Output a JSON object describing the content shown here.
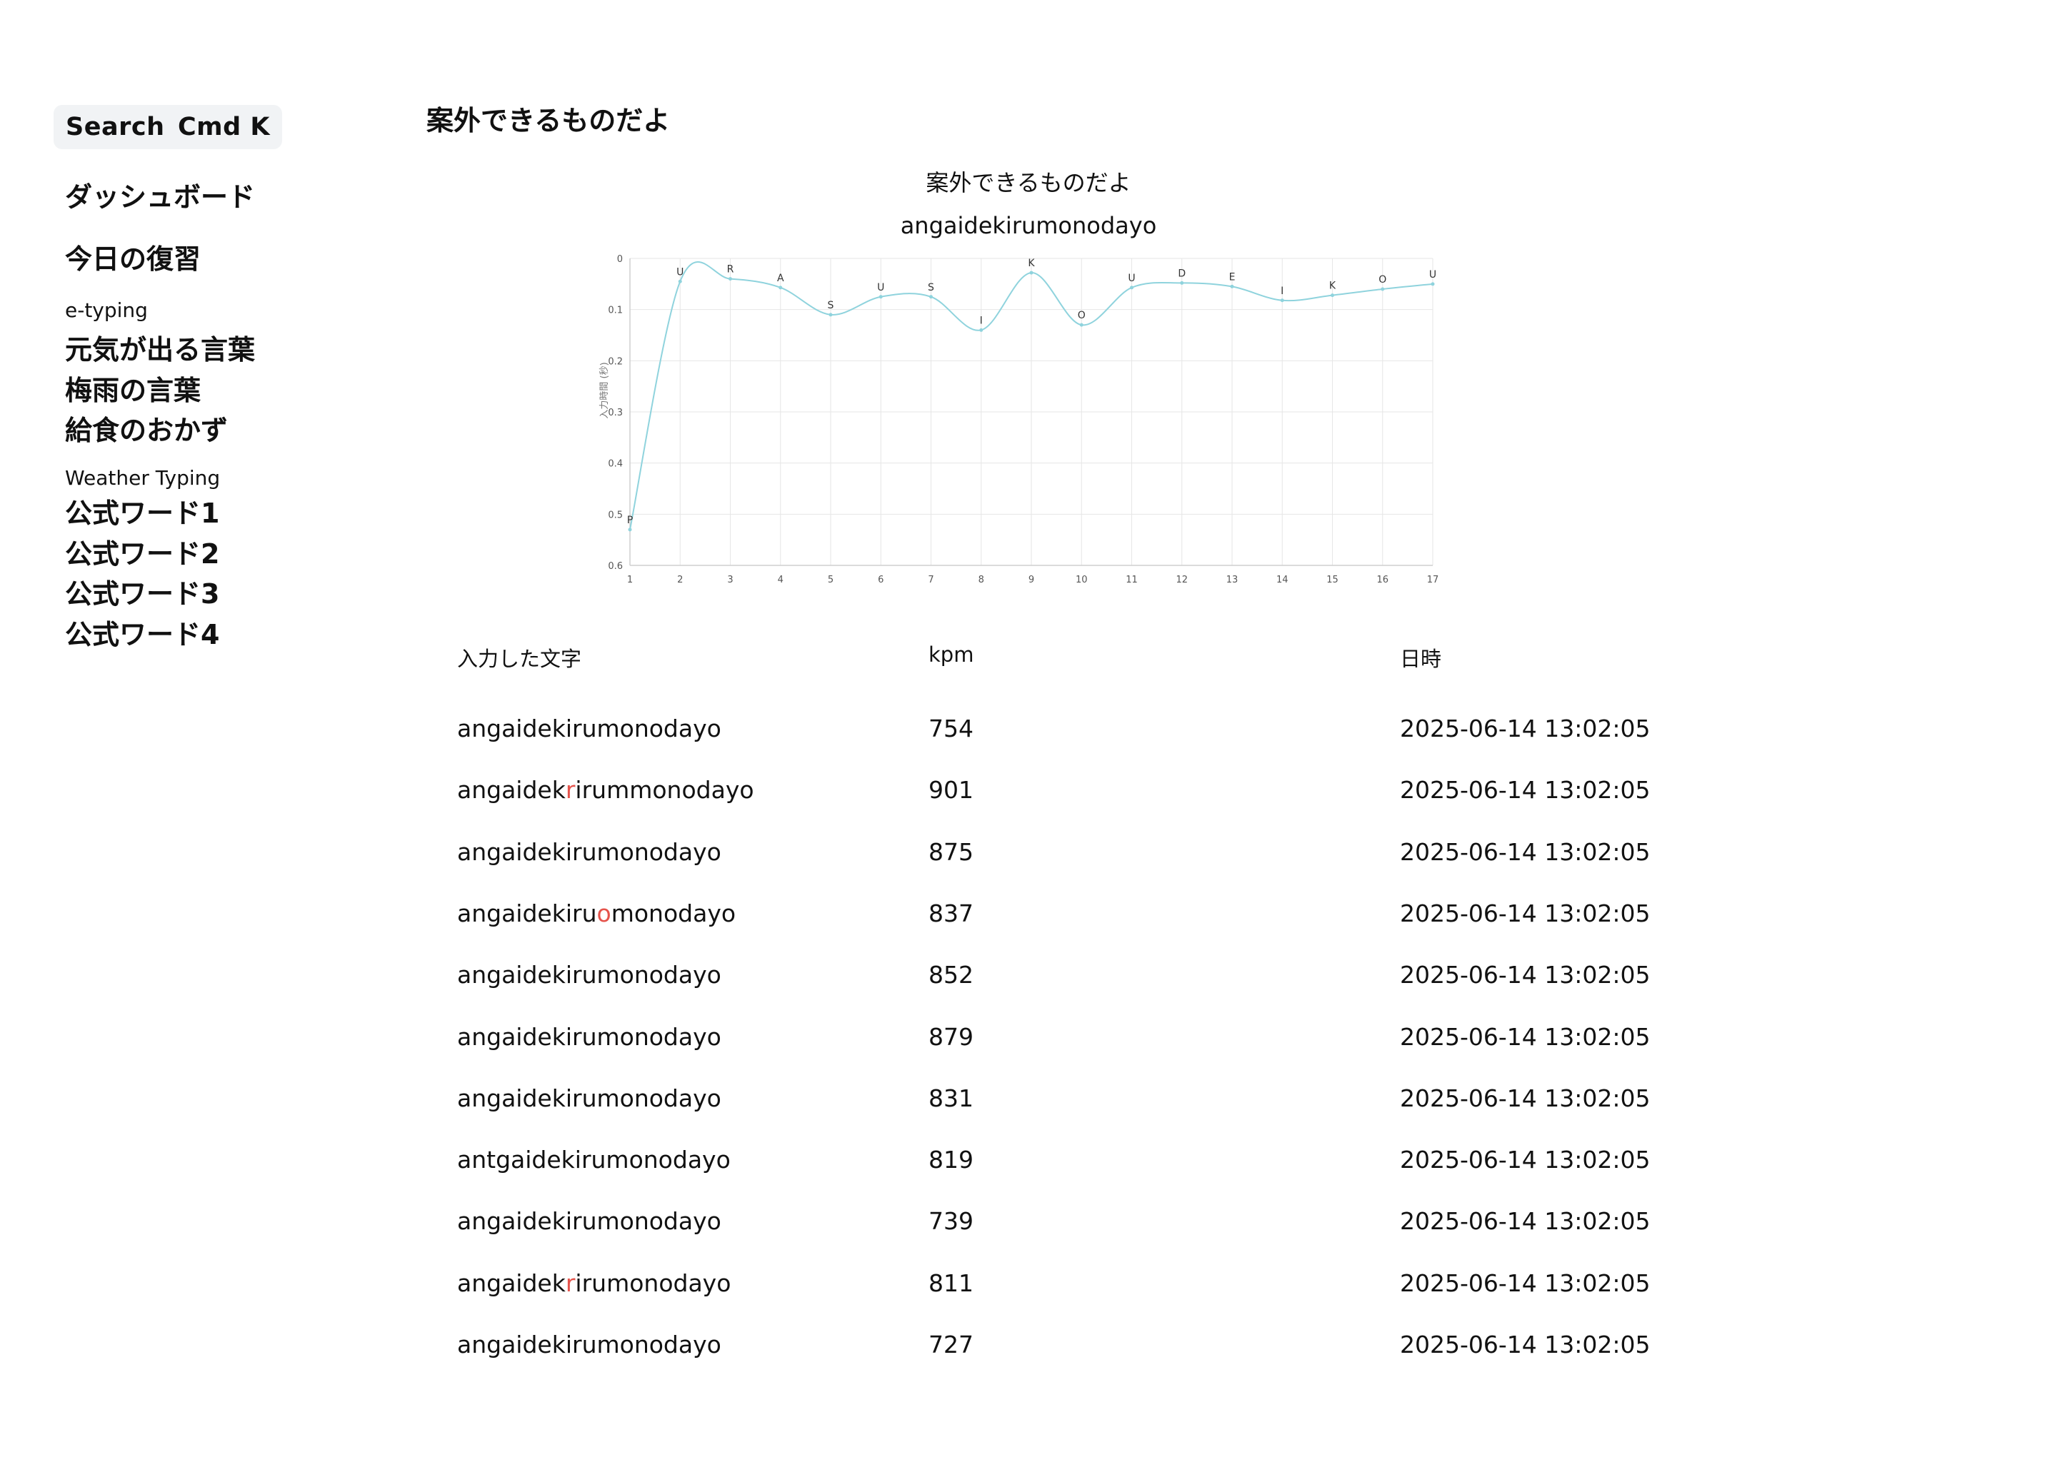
{
  "sidebar": {
    "search_label": "Search",
    "search_shortcut": "Cmd K",
    "dashboard": "ダッシュボード",
    "review": "今日の復習",
    "groups": [
      {
        "name": "e-typing",
        "items": [
          "元気が出る言葉",
          "梅雨の言葉",
          "給食のおかず"
        ]
      },
      {
        "name": "Weather Typing",
        "items": [
          "公式ワード1",
          "公式ワード2",
          "公式ワード3",
          "公式ワード4"
        ]
      }
    ]
  },
  "main": {
    "title": "案外できるものだよ",
    "chart_title_ja": "案外できるものだよ",
    "chart_title_romaji": "angaidekirumonodayo"
  },
  "chart_data": {
    "type": "line",
    "ylabel": "入力時間 (秒)",
    "xlabel": "",
    "x": [
      1,
      2,
      3,
      4,
      5,
      6,
      7,
      8,
      9,
      10,
      11,
      12,
      13,
      14,
      15,
      16,
      17
    ],
    "values": [
      0.53,
      0.045,
      0.04,
      0.057,
      0.11,
      0.075,
      0.075,
      0.14,
      0.028,
      0.13,
      0.057,
      0.048,
      0.055,
      0.082,
      0.072,
      0.06,
      0.05
    ],
    "point_labels": [
      "P",
      "U",
      "R",
      "A",
      "S",
      "U",
      "S",
      "I",
      "K",
      "O",
      "U",
      "D",
      "E",
      "I",
      "K",
      "O",
      "U"
    ],
    "ylim": [
      0,
      0.6
    ],
    "y_ticks": [
      "0",
      "0.1",
      "0.2",
      "0.3",
      "0.4",
      "0.5",
      "0.6"
    ],
    "y_inverted": true,
    "grid": true,
    "line_color": "#8fd3dd"
  },
  "table": {
    "headers": [
      "入力した文字",
      "kpm",
      "日時"
    ],
    "rows": [
      {
        "typed": [
          {
            "t": "angaidekirumonodayo",
            "err": false
          }
        ],
        "kpm": "754",
        "datetime": "2025-06-14 13:02:05"
      },
      {
        "typed": [
          {
            "t": "angaidek",
            "err": false
          },
          {
            "t": "r",
            "err": true
          },
          {
            "t": "irummonodayo",
            "err": false
          }
        ],
        "kpm": "901",
        "datetime": "2025-06-14 13:02:05"
      },
      {
        "typed": [
          {
            "t": "angaidekirumonodayo",
            "err": false
          }
        ],
        "kpm": "875",
        "datetime": "2025-06-14 13:02:05"
      },
      {
        "typed": [
          {
            "t": "angaidekiru",
            "err": false
          },
          {
            "t": "o",
            "err": true
          },
          {
            "t": "monodayo",
            "err": false
          }
        ],
        "kpm": "837",
        "datetime": "2025-06-14 13:02:05"
      },
      {
        "typed": [
          {
            "t": "angaidekirumonodayo",
            "err": false
          }
        ],
        "kpm": "852",
        "datetime": "2025-06-14 13:02:05"
      },
      {
        "typed": [
          {
            "t": "angaidekirumonodayo",
            "err": false
          }
        ],
        "kpm": "879",
        "datetime": "2025-06-14 13:02:05"
      },
      {
        "typed": [
          {
            "t": "angaidekirumonodayo",
            "err": false
          }
        ],
        "kpm": "831",
        "datetime": "2025-06-14 13:02:05"
      },
      {
        "typed": [
          {
            "t": "antgaidekirumonodayo",
            "err": false
          }
        ],
        "kpm": "819",
        "datetime": "2025-06-14 13:02:05"
      },
      {
        "typed": [
          {
            "t": "angaidekirumonodayo",
            "err": false
          }
        ],
        "kpm": "739",
        "datetime": "2025-06-14 13:02:05"
      },
      {
        "typed": [
          {
            "t": "angaidek",
            "err": false
          },
          {
            "t": "r",
            "err": true
          },
          {
            "t": "irumonodayo",
            "err": false
          }
        ],
        "kpm": "811",
        "datetime": "2025-06-14 13:02:05"
      },
      {
        "typed": [
          {
            "t": "angaidekirumonodayo",
            "err": false
          }
        ],
        "kpm": "727",
        "datetime": "2025-06-14 13:02:05"
      }
    ]
  },
  "colors": {
    "error": "#e5534b",
    "search_bg": "#f1f3f5"
  }
}
